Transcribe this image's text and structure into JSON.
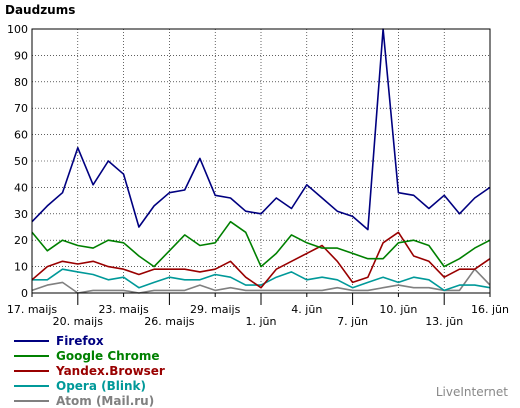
{
  "chart_data": {
    "type": "line",
    "title": "Daudzums",
    "ylim": [
      0,
      100
    ],
    "yticks": [
      0,
      10,
      20,
      30,
      40,
      50,
      60,
      70,
      80,
      90,
      100
    ],
    "grid": true,
    "xtick_labels": [
      {
        "index": 0,
        "label": "17. maijs",
        "row": 1
      },
      {
        "index": 3,
        "label": "20. maijs",
        "row": 2
      },
      {
        "index": 6,
        "label": "23. maijs",
        "row": 1
      },
      {
        "index": 9,
        "label": "26. maijs",
        "row": 2
      },
      {
        "index": 12,
        "label": "29. maijs",
        "row": 1
      },
      {
        "index": 15,
        "label": "1. jūn",
        "row": 2
      },
      {
        "index": 18,
        "label": "4. jūn",
        "row": 1
      },
      {
        "index": 21,
        "label": "7. jūn",
        "row": 2
      },
      {
        "index": 24,
        "label": "10. jūn",
        "row": 1
      },
      {
        "index": 27,
        "label": "13. jūn",
        "row": 2
      },
      {
        "index": 30,
        "label": "16. jūn",
        "row": 1
      }
    ],
    "series": [
      {
        "name": "Firefox",
        "color": "#000080",
        "values": [
          27,
          33,
          38,
          55,
          41,
          50,
          45,
          25,
          33,
          38,
          39,
          51,
          37,
          36,
          31,
          30,
          36,
          32,
          41,
          36,
          31,
          29,
          24,
          100,
          38,
          37,
          32,
          37,
          30,
          36,
          40
        ]
      },
      {
        "name": "Google Chrome",
        "color": "#008000",
        "values": [
          23,
          16,
          20,
          18,
          17,
          20,
          19,
          14,
          10,
          16,
          22,
          18,
          19,
          27,
          23,
          10,
          15,
          22,
          19,
          17,
          17,
          15,
          13,
          13,
          19,
          20,
          18,
          10,
          13,
          17,
          20
        ]
      },
      {
        "name": "Yandex.Browser",
        "color": "#990000",
        "values": [
          5,
          10,
          12,
          11,
          12,
          10,
          9,
          7,
          9,
          9,
          9,
          8,
          9,
          12,
          6,
          2,
          9,
          12,
          15,
          18,
          12,
          4,
          6,
          19,
          23,
          14,
          12,
          6,
          9,
          9,
          13
        ]
      },
      {
        "name": "Opera (Blink)",
        "color": "#009999",
        "values": [
          5,
          5,
          9,
          8,
          7,
          5,
          6,
          2,
          4,
          6,
          5,
          5,
          7,
          6,
          3,
          3,
          6,
          8,
          5,
          6,
          5,
          2,
          4,
          6,
          4,
          6,
          5,
          1,
          3,
          3,
          2
        ]
      },
      {
        "name": "Atom (Mail.ru)",
        "color": "#808080",
        "values": [
          1,
          3,
          4,
          0,
          1,
          1,
          1,
          0,
          1,
          1,
          1,
          3,
          1,
          2,
          1,
          1,
          1,
          1,
          1,
          1,
          2,
          1,
          1,
          2,
          3,
          2,
          2,
          1,
          1,
          9,
          3
        ]
      }
    ]
  },
  "watermark": "LiveInternet"
}
